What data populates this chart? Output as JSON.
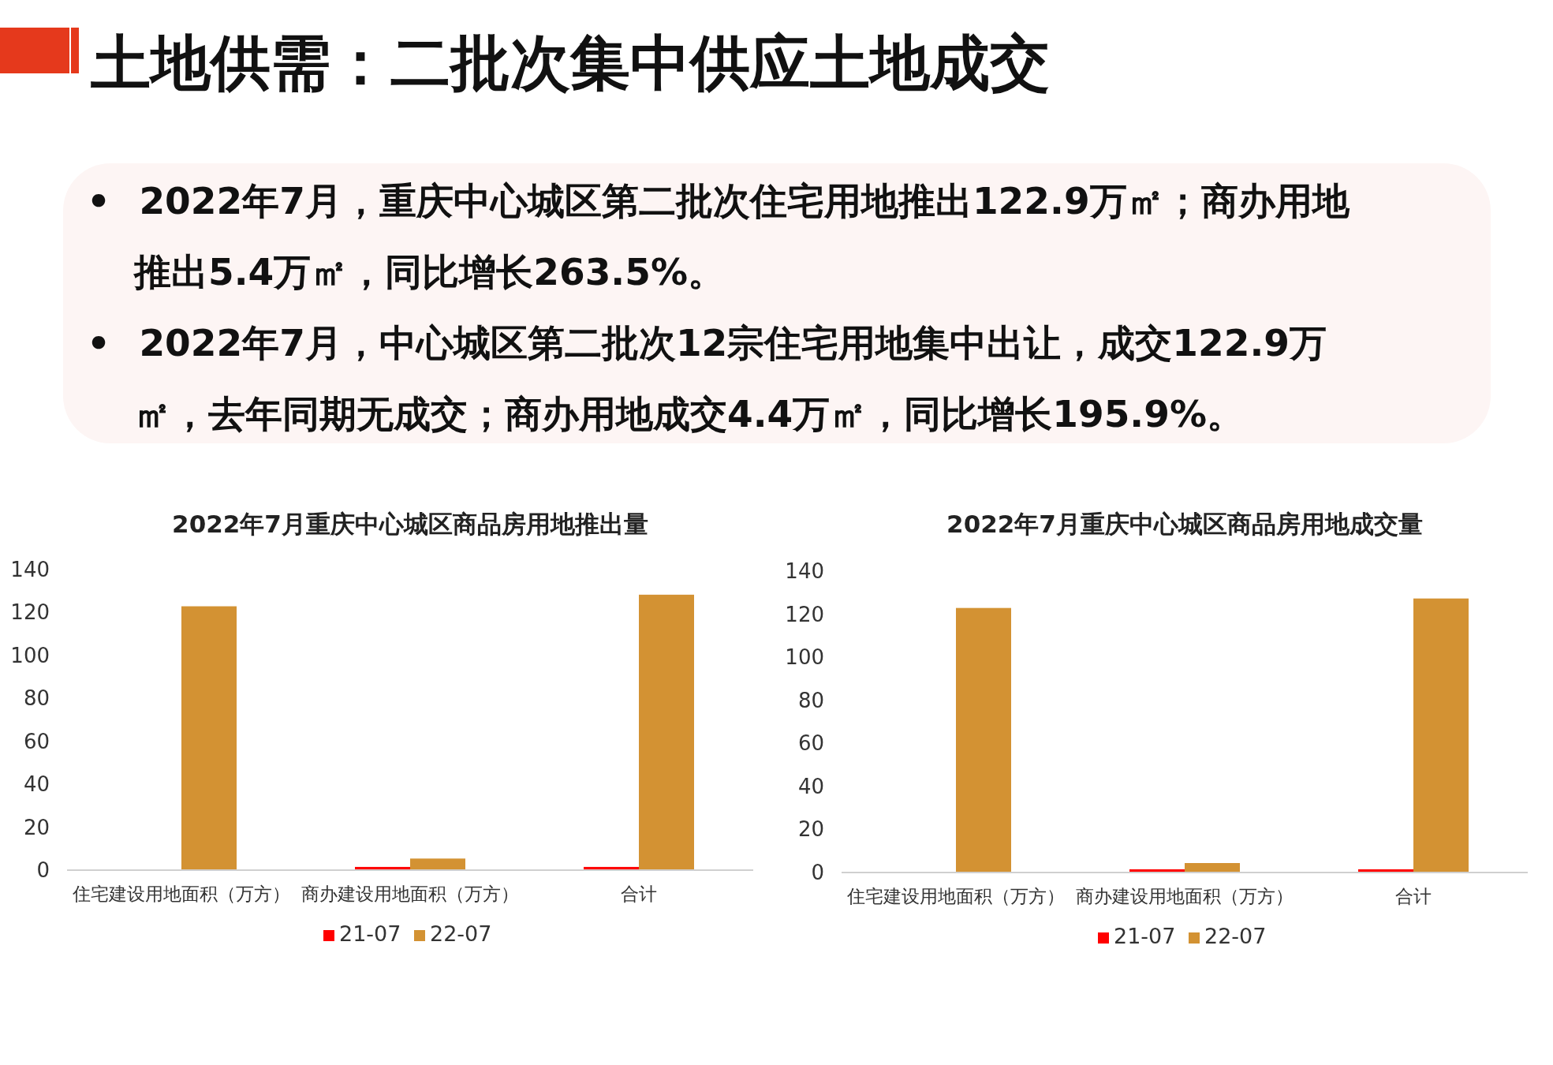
{
  "chart_data": [
    {
      "type": "other",
      "title": "土地供需：二批次集中供应土地成交",
      "annotations": [
        "• 2022年7月，重庆中心城区第二批次住宅用地推出122.9万㎡；商办用地推出5.4万㎡，同比增长263.5%。",
        "• 2022年7月，中心城区第二批次12宗住宅用地集中出让，成交122.9万㎡，去年同期无成交；商办用地成交4.4万㎡，同比增长195.9%。"
      ]
    },
    {
      "type": "bar",
      "title": "2022年7月重庆中心城区商品房用地推出量",
      "categories": [
        "住宅建设用地面积（万方）",
        "商办建设用地面积（万方）",
        "合计"
      ],
      "series": [
        {
          "name": "21-07",
          "color": "#ff0000",
          "values": [
            0,
            1.5,
            1.5
          ]
        },
        {
          "name": "22-07",
          "color": "#d39233",
          "values": [
            122.9,
            5.4,
            128.3
          ]
        }
      ],
      "ylim": [
        0,
        140
      ],
      "yticks": [
        0,
        20,
        40,
        60,
        80,
        100,
        120,
        140
      ],
      "grid": false,
      "legend": "bottom"
    },
    {
      "type": "bar",
      "title": "2022年7月重庆中心城区商品房用地成交量",
      "categories": [
        "住宅建设用地面积（万方）",
        "商办建设用地面积（万方）",
        "合计"
      ],
      "series": [
        {
          "name": "21-07",
          "color": "#ff0000",
          "values": [
            0,
            1.5,
            1.5
          ]
        },
        {
          "name": "22-07",
          "color": "#d39233",
          "values": [
            122.9,
            4.4,
            127.3
          ]
        }
      ],
      "ylim": [
        0,
        140
      ],
      "yticks": [
        0,
        20,
        40,
        60,
        80,
        100,
        120,
        140
      ],
      "grid": false,
      "legend": "bottom"
    }
  ]
}
